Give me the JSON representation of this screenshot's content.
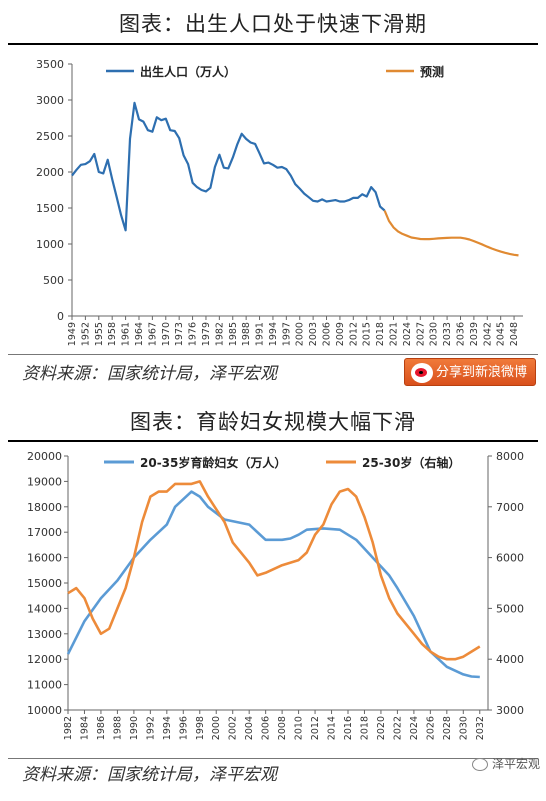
{
  "chart1": {
    "title": "图表：出生人口处于快速下滑期",
    "source": "资料来源：国家统计局，泽平宏观",
    "share_label": "分享到新浪微博",
    "chart_data": {
      "type": "line",
      "ylim": [
        0,
        3500
      ],
      "y_ticks": [
        0,
        500,
        1000,
        1500,
        2000,
        2500,
        3000,
        3500
      ],
      "xlim": [
        1949,
        2050
      ],
      "x_ticks": [
        "1949",
        "1952",
        "1955",
        "1958",
        "1961",
        "1964",
        "1967",
        "1970",
        "1973",
        "1976",
        "1979",
        "1982",
        "1985",
        "1988",
        "1991",
        "1994",
        "1997",
        "2000",
        "2003",
        "2006",
        "2009",
        "2012",
        "2015",
        "2018",
        "2021",
        "2024",
        "2027",
        "2030",
        "2033",
        "2036",
        "2039",
        "2042",
        "2045",
        "2048"
      ],
      "legend_position": "top",
      "grid": false,
      "series": [
        {
          "name": "出生人口（万人）",
          "color": "#2e6fb0",
          "points": [
            [
              1949,
              1950
            ],
            [
              1950,
              2030
            ],
            [
              1951,
              2100
            ],
            [
              1952,
              2110
            ],
            [
              1953,
              2150
            ],
            [
              1954,
              2250
            ],
            [
              1955,
              2000
            ],
            [
              1956,
              1980
            ],
            [
              1957,
              2170
            ],
            [
              1958,
              1900
            ],
            [
              1959,
              1650
            ],
            [
              1960,
              1400
            ],
            [
              1961,
              1190
            ],
            [
              1962,
              2460
            ],
            [
              1963,
              2960
            ],
            [
              1964,
              2730
            ],
            [
              1965,
              2700
            ],
            [
              1966,
              2580
            ],
            [
              1967,
              2560
            ],
            [
              1968,
              2760
            ],
            [
              1969,
              2720
            ],
            [
              1970,
              2740
            ],
            [
              1971,
              2580
            ],
            [
              1972,
              2570
            ],
            [
              1973,
              2470
            ],
            [
              1974,
              2230
            ],
            [
              1975,
              2110
            ],
            [
              1976,
              1850
            ],
            [
              1977,
              1790
            ],
            [
              1978,
              1750
            ],
            [
              1979,
              1730
            ],
            [
              1980,
              1780
            ],
            [
              1981,
              2070
            ],
            [
              1982,
              2240
            ],
            [
              1983,
              2060
            ],
            [
              1984,
              2050
            ],
            [
              1985,
              2200
            ],
            [
              1986,
              2380
            ],
            [
              1987,
              2530
            ],
            [
              1988,
              2460
            ],
            [
              1989,
              2410
            ],
            [
              1990,
              2390
            ],
            [
              1991,
              2260
            ],
            [
              1992,
              2120
            ],
            [
              1993,
              2130
            ],
            [
              1994,
              2100
            ],
            [
              1995,
              2060
            ],
            [
              1996,
              2070
            ],
            [
              1997,
              2040
            ],
            [
              1998,
              1950
            ],
            [
              1999,
              1830
            ],
            [
              2000,
              1770
            ],
            [
              2001,
              1700
            ],
            [
              2002,
              1650
            ],
            [
              2003,
              1600
            ],
            [
              2004,
              1590
            ],
            [
              2005,
              1620
            ],
            [
              2006,
              1590
            ],
            [
              2007,
              1600
            ],
            [
              2008,
              1610
            ],
            [
              2009,
              1590
            ],
            [
              2010,
              1590
            ],
            [
              2011,
              1610
            ],
            [
              2012,
              1640
            ],
            [
              2013,
              1640
            ],
            [
              2014,
              1690
            ],
            [
              2015,
              1660
            ],
            [
              2016,
              1790
            ],
            [
              2017,
              1720
            ],
            [
              2018,
              1520
            ],
            [
              2019,
              1465
            ]
          ]
        },
        {
          "name": "预测",
          "color": "#e08a32",
          "points": [
            [
              2019,
              1465
            ],
            [
              2020,
              1320
            ],
            [
              2021,
              1230
            ],
            [
              2022,
              1175
            ],
            [
              2023,
              1140
            ],
            [
              2024,
              1115
            ],
            [
              2025,
              1090
            ],
            [
              2026,
              1080
            ],
            [
              2027,
              1070
            ],
            [
              2028,
              1068
            ],
            [
              2029,
              1068
            ],
            [
              2030,
              1072
            ],
            [
              2031,
              1078
            ],
            [
              2032,
              1082
            ],
            [
              2033,
              1085
            ],
            [
              2034,
              1087
            ],
            [
              2035,
              1088
            ],
            [
              2036,
              1088
            ],
            [
              2037,
              1078
            ],
            [
              2038,
              1062
            ],
            [
              2039,
              1040
            ],
            [
              2040,
              1015
            ],
            [
              2041,
              990
            ],
            [
              2042,
              963
            ],
            [
              2043,
              938
            ],
            [
              2044,
              915
            ],
            [
              2045,
              895
            ],
            [
              2046,
              878
            ],
            [
              2047,
              862
            ],
            [
              2048,
              850
            ],
            [
              2049,
              842
            ]
          ]
        }
      ]
    }
  },
  "chart2": {
    "title": "图表：育龄妇女规模大幅下滑",
    "source": "资料来源：国家统计局，泽平宏观",
    "watermark": "泽平宏观",
    "chart_data": {
      "type": "line",
      "xlim": [
        1982,
        2033
      ],
      "x_ticks": [
        "1982",
        "1984",
        "1986",
        "1988",
        "1990",
        "1992",
        "1994",
        "1996",
        "1998",
        "2000",
        "2002",
        "2004",
        "2006",
        "2008",
        "2010",
        "2012",
        "2014",
        "2016",
        "2018",
        "2020",
        "2022",
        "2024",
        "2026",
        "2028",
        "2030",
        "2032"
      ],
      "ylim_left": [
        10000,
        20000
      ],
      "y_ticks_left": [
        10000,
        11000,
        12000,
        13000,
        14000,
        15000,
        16000,
        17000,
        18000,
        19000,
        20000
      ],
      "ylim_right": [
        3000,
        8000
      ],
      "y_ticks_right": [
        3000,
        4000,
        5000,
        6000,
        7000,
        8000
      ],
      "legend_position": "top",
      "grid": false,
      "series": [
        {
          "name": "20-35岁育龄妇女（万人）",
          "axis": "left",
          "color": "#5b9bd5",
          "points": [
            [
              1982,
              12200
            ],
            [
              1984,
              13500
            ],
            [
              1986,
              14400
            ],
            [
              1988,
              15100
            ],
            [
              1990,
              16000
            ],
            [
              1992,
              16700
            ],
            [
              1994,
              17300
            ],
            [
              1995,
              18000
            ],
            [
              1997,
              18600
            ],
            [
              1998,
              18400
            ],
            [
              1999,
              18000
            ],
            [
              2001,
              17500
            ],
            [
              2004,
              17300
            ],
            [
              2006,
              16700
            ],
            [
              2008,
              16700
            ],
            [
              2009,
              16750
            ],
            [
              2010,
              16900
            ],
            [
              2011,
              17100
            ],
            [
              2013,
              17150
            ],
            [
              2015,
              17100
            ],
            [
              2017,
              16700
            ],
            [
              2019,
              16000
            ],
            [
              2021,
              15300
            ],
            [
              2022,
              14800
            ],
            [
              2024,
              13700
            ],
            [
              2026,
              12300
            ],
            [
              2028,
              11700
            ],
            [
              2030,
              11400
            ],
            [
              2031,
              11320
            ],
            [
              2032,
              11300
            ]
          ]
        },
        {
          "name": "25-30岁（右轴）",
          "axis": "right",
          "color": "#ed8b3a",
          "points": [
            [
              1982,
              5300
            ],
            [
              1983,
              5400
            ],
            [
              1984,
              5200
            ],
            [
              1985,
              4800
            ],
            [
              1986,
              4500
            ],
            [
              1987,
              4600
            ],
            [
              1988,
              5000
            ],
            [
              1989,
              5400
            ],
            [
              1990,
              6000
            ],
            [
              1991,
              6700
            ],
            [
              1992,
              7200
            ],
            [
              1993,
              7300
            ],
            [
              1994,
              7300
            ],
            [
              1995,
              7450
            ],
            [
              1996,
              7450
            ],
            [
              1997,
              7450
            ],
            [
              1998,
              7500
            ],
            [
              1999,
              7200
            ],
            [
              2001,
              6700
            ],
            [
              2002,
              6300
            ],
            [
              2004,
              5900
            ],
            [
              2005,
              5650
            ],
            [
              2006,
              5700
            ],
            [
              2008,
              5850
            ],
            [
              2010,
              5950
            ],
            [
              2011,
              6100
            ],
            [
              2012,
              6450
            ],
            [
              2013,
              6650
            ],
            [
              2014,
              7050
            ],
            [
              2015,
              7300
            ],
            [
              2016,
              7350
            ],
            [
              2017,
              7200
            ],
            [
              2018,
              6800
            ],
            [
              2019,
              6300
            ],
            [
              2020,
              5650
            ],
            [
              2021,
              5200
            ],
            [
              2022,
              4900
            ],
            [
              2024,
              4500
            ],
            [
              2025,
              4300
            ],
            [
              2026,
              4150
            ],
            [
              2027,
              4050
            ],
            [
              2028,
              4000
            ],
            [
              2029,
              4000
            ],
            [
              2030,
              4050
            ],
            [
              2031,
              4150
            ],
            [
              2032,
              4250
            ]
          ]
        }
      ]
    }
  }
}
